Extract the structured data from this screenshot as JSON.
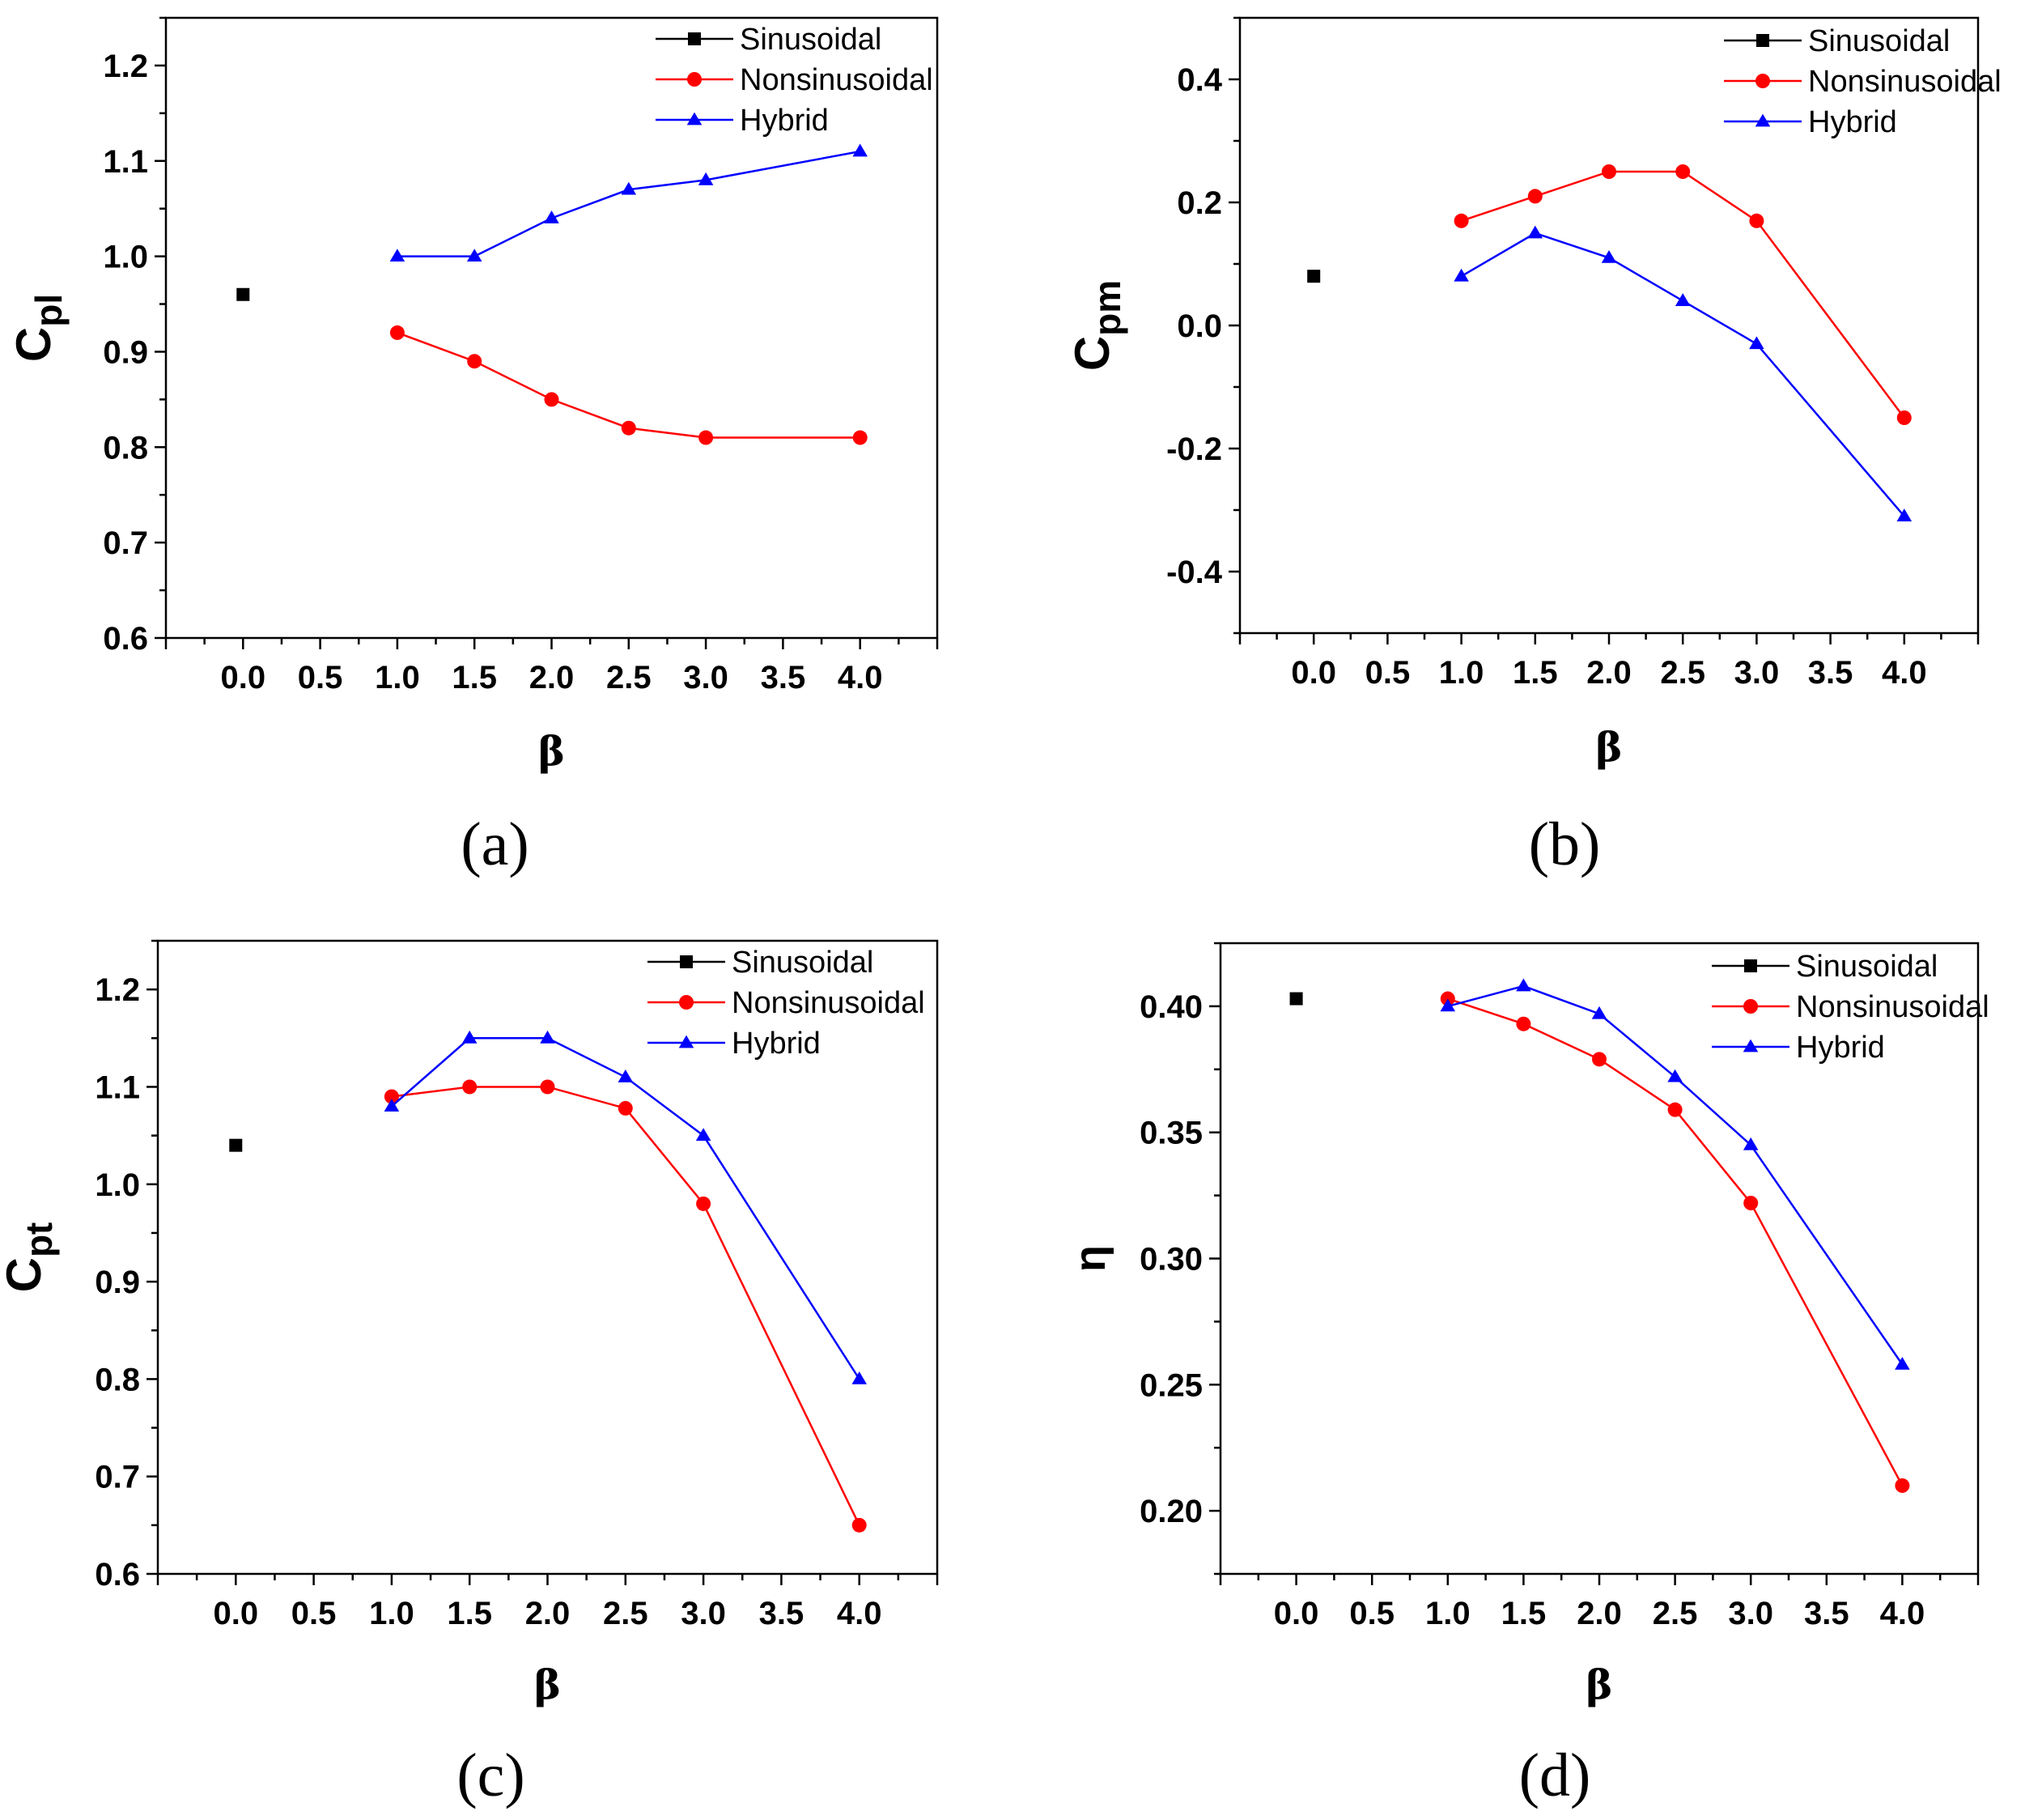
{
  "colors": {
    "sinusoidal": "#000000",
    "nonsinusoidal": "#ff0000",
    "hybrid": "#0000ff"
  },
  "chart_data": [
    {
      "type": "line",
      "panel_label": "(a)",
      "xlabel": "β",
      "ylabel": "C",
      "ylabel_sub": "pl",
      "xlim": [
        -0.5,
        4.5
      ],
      "ylim": [
        0.6,
        1.25
      ],
      "xticks": [
        "0.0",
        "0.5",
        "1.0",
        "1.5",
        "2.0",
        "2.5",
        "3.0",
        "3.5",
        "4.0"
      ],
      "yticks": [
        "0.6",
        "0.7",
        "0.8",
        "0.9",
        "1.0",
        "1.1",
        "1.2"
      ],
      "legend_position": "top-right",
      "series": [
        {
          "name": "Sinusoidal",
          "marker": "square",
          "x": [
            0.0
          ],
          "y": [
            0.96
          ]
        },
        {
          "name": "Nonsinusoidal",
          "marker": "circle",
          "x": [
            1.0,
            1.5,
            2.0,
            2.5,
            3.0,
            4.0
          ],
          "y": [
            0.92,
            0.89,
            0.85,
            0.82,
            0.81,
            0.81
          ]
        },
        {
          "name": "Hybrid",
          "marker": "triangle",
          "x": [
            1.0,
            1.5,
            2.0,
            2.5,
            3.0,
            4.0
          ],
          "y": [
            1.0,
            1.0,
            1.04,
            1.07,
            1.08,
            1.11
          ]
        }
      ]
    },
    {
      "type": "line",
      "panel_label": "(b)",
      "xlabel": "β",
      "ylabel": "C",
      "ylabel_sub": "pm",
      "xlim": [
        -0.5,
        4.5
      ],
      "ylim": [
        -0.5,
        0.5
      ],
      "xticks": [
        "0.0",
        "0.5",
        "1.0",
        "1.5",
        "2.0",
        "2.5",
        "3.0",
        "3.5",
        "4.0"
      ],
      "yticks": [
        "-0.4",
        "-0.2",
        "0.0",
        "0.2",
        "0.4"
      ],
      "legend_position": "top-right",
      "series": [
        {
          "name": "Sinusoidal",
          "marker": "square",
          "x": [
            0.0
          ],
          "y": [
            0.08
          ]
        },
        {
          "name": "Nonsinusoidal",
          "marker": "circle",
          "x": [
            1.0,
            1.5,
            2.0,
            2.5,
            3.0,
            4.0
          ],
          "y": [
            0.17,
            0.21,
            0.25,
            0.25,
            0.17,
            -0.15
          ]
        },
        {
          "name": "Hybrid",
          "marker": "triangle",
          "x": [
            1.0,
            1.5,
            2.0,
            2.5,
            3.0,
            4.0
          ],
          "y": [
            0.08,
            0.15,
            0.11,
            0.04,
            -0.03,
            -0.31
          ]
        }
      ]
    },
    {
      "type": "line",
      "panel_label": "(c)",
      "xlabel": "β",
      "ylabel": "C",
      "ylabel_sub": "pt",
      "xlim": [
        -0.5,
        4.5
      ],
      "ylim": [
        0.6,
        1.25
      ],
      "xticks": [
        "0.0",
        "0.5",
        "1.0",
        "1.5",
        "2.0",
        "2.5",
        "3.0",
        "3.5",
        "4.0"
      ],
      "yticks": [
        "0.6",
        "0.7",
        "0.8",
        "0.9",
        "1.0",
        "1.1",
        "1.2"
      ],
      "legend_position": "top-right",
      "series": [
        {
          "name": "Sinusoidal",
          "marker": "square",
          "x": [
            0.0
          ],
          "y": [
            1.04
          ]
        },
        {
          "name": "Nonsinusoidal",
          "marker": "circle",
          "x": [
            1.0,
            1.5,
            2.0,
            2.5,
            3.0,
            4.0
          ],
          "y": [
            1.09,
            1.1,
            1.1,
            1.078,
            0.98,
            0.65
          ]
        },
        {
          "name": "Hybrid",
          "marker": "triangle",
          "x": [
            1.0,
            1.5,
            2.0,
            2.5,
            3.0,
            4.0
          ],
          "y": [
            1.08,
            1.15,
            1.15,
            1.11,
            1.05,
            0.8
          ]
        }
      ]
    },
    {
      "type": "line",
      "panel_label": "(d)",
      "xlabel": "β",
      "ylabel": "η",
      "ylabel_sub": "",
      "xlim": [
        -0.5,
        4.5
      ],
      "ylim": [
        0.175,
        0.425
      ],
      "xticks": [
        "0.0",
        "0.5",
        "1.0",
        "1.5",
        "2.0",
        "2.5",
        "3.0",
        "3.5",
        "4.0"
      ],
      "yticks": [
        "0.20",
        "0.25",
        "0.30",
        "0.35",
        "0.40"
      ],
      "legend_position": "top-right",
      "series": [
        {
          "name": "Sinusoidal",
          "marker": "square",
          "x": [
            0.0
          ],
          "y": [
            0.403
          ]
        },
        {
          "name": "Nonsinusoidal",
          "marker": "circle",
          "x": [
            1.0,
            1.5,
            2.0,
            2.5,
            3.0,
            4.0
          ],
          "y": [
            0.403,
            0.393,
            0.379,
            0.359,
            0.322,
            0.21
          ]
        },
        {
          "name": "Hybrid",
          "marker": "triangle",
          "x": [
            1.0,
            1.5,
            2.0,
            2.5,
            3.0,
            4.0
          ],
          "y": [
            0.4,
            0.408,
            0.397,
            0.372,
            0.345,
            0.258
          ]
        }
      ]
    }
  ]
}
